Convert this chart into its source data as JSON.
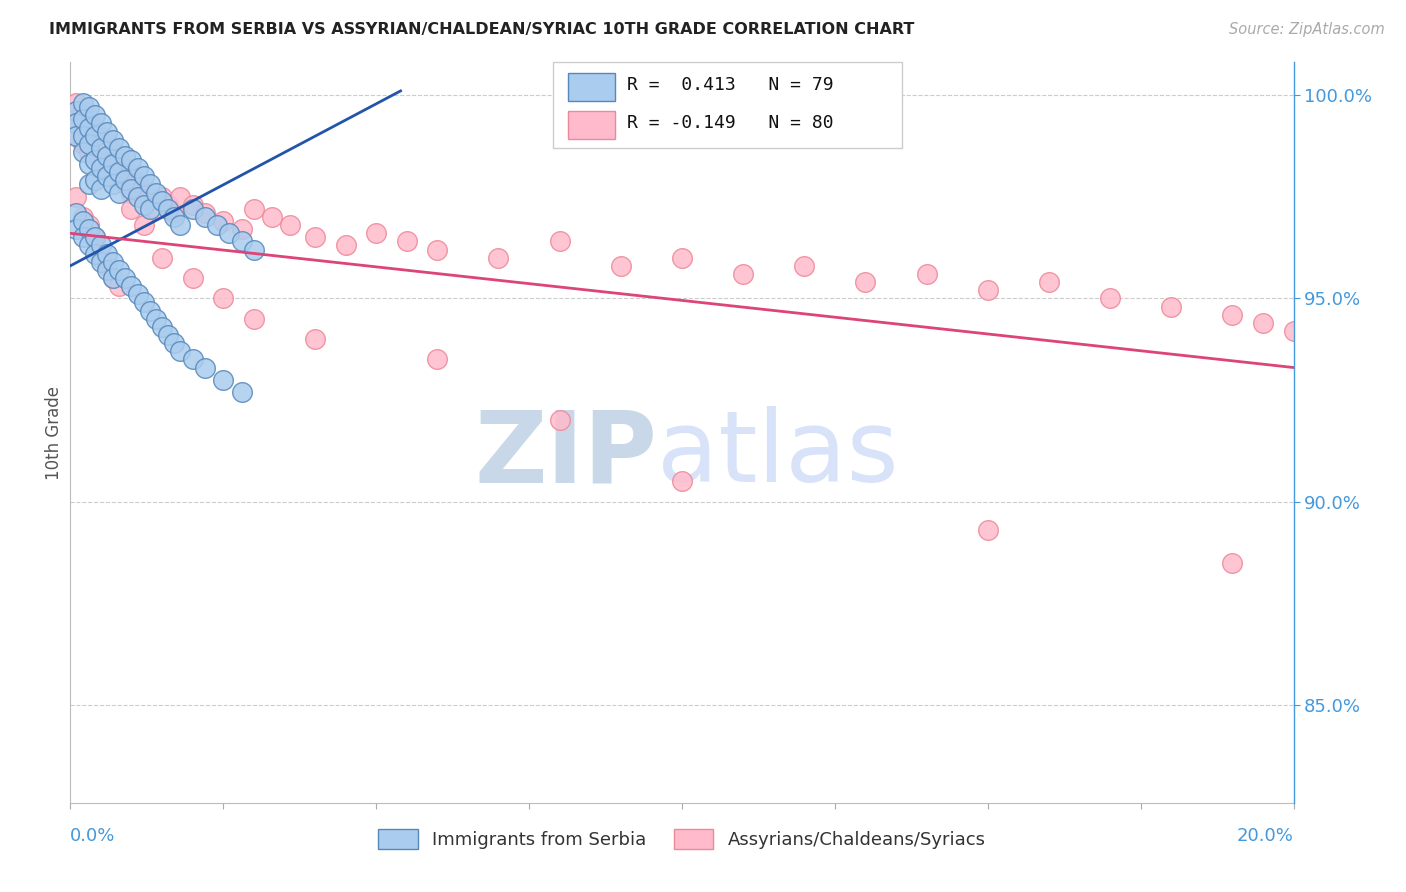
{
  "title": "IMMIGRANTS FROM SERBIA VS ASSYRIAN/CHALDEAN/SYRIAC 10TH GRADE CORRELATION CHART",
  "source": "Source: ZipAtlas.com",
  "ylabel": "10th Grade",
  "y_tick_labels": [
    "85.0%",
    "90.0%",
    "95.0%",
    "100.0%"
  ],
  "y_tick_values": [
    0.85,
    0.9,
    0.95,
    1.0
  ],
  "x_min": 0.0,
  "x_max": 0.2,
  "y_min": 0.826,
  "y_max": 1.008,
  "legend_r1": "R =  0.413",
  "legend_n1": "N = 79",
  "legend_r2": "R = -0.149",
  "legend_n2": "N = 80",
  "blue_color": "#AACCEE",
  "pink_color": "#FFBBCC",
  "blue_edge_color": "#5588BB",
  "pink_edge_color": "#EE8899",
  "blue_line_color": "#2255AA",
  "pink_line_color": "#DD4477",
  "blue_scatter_x": [
    0.001,
    0.001,
    0.001,
    0.002,
    0.002,
    0.002,
    0.002,
    0.003,
    0.003,
    0.003,
    0.003,
    0.003,
    0.004,
    0.004,
    0.004,
    0.004,
    0.005,
    0.005,
    0.005,
    0.005,
    0.006,
    0.006,
    0.006,
    0.007,
    0.007,
    0.007,
    0.008,
    0.008,
    0.008,
    0.009,
    0.009,
    0.01,
    0.01,
    0.011,
    0.011,
    0.012,
    0.012,
    0.013,
    0.013,
    0.014,
    0.015,
    0.016,
    0.017,
    0.018,
    0.02,
    0.022,
    0.024,
    0.026,
    0.028,
    0.03,
    0.001,
    0.001,
    0.002,
    0.002,
    0.003,
    0.003,
    0.004,
    0.004,
    0.005,
    0.005,
    0.006,
    0.006,
    0.007,
    0.007,
    0.008,
    0.009,
    0.01,
    0.011,
    0.012,
    0.013,
    0.014,
    0.015,
    0.016,
    0.017,
    0.018,
    0.02,
    0.022,
    0.025,
    0.028
  ],
  "blue_scatter_y": [
    0.996,
    0.993,
    0.99,
    0.998,
    0.994,
    0.99,
    0.986,
    0.997,
    0.992,
    0.988,
    0.983,
    0.978,
    0.995,
    0.99,
    0.984,
    0.979,
    0.993,
    0.987,
    0.982,
    0.977,
    0.991,
    0.985,
    0.98,
    0.989,
    0.983,
    0.978,
    0.987,
    0.981,
    0.976,
    0.985,
    0.979,
    0.984,
    0.977,
    0.982,
    0.975,
    0.98,
    0.973,
    0.978,
    0.972,
    0.976,
    0.974,
    0.972,
    0.97,
    0.968,
    0.972,
    0.97,
    0.968,
    0.966,
    0.964,
    0.962,
    0.971,
    0.967,
    0.969,
    0.965,
    0.967,
    0.963,
    0.965,
    0.961,
    0.963,
    0.959,
    0.961,
    0.957,
    0.959,
    0.955,
    0.957,
    0.955,
    0.953,
    0.951,
    0.949,
    0.947,
    0.945,
    0.943,
    0.941,
    0.939,
    0.937,
    0.935,
    0.933,
    0.93,
    0.927
  ],
  "pink_scatter_x": [
    0.001,
    0.001,
    0.001,
    0.002,
    0.002,
    0.002,
    0.003,
    0.003,
    0.003,
    0.004,
    0.004,
    0.004,
    0.005,
    0.005,
    0.005,
    0.006,
    0.006,
    0.007,
    0.007,
    0.008,
    0.008,
    0.009,
    0.009,
    0.01,
    0.01,
    0.011,
    0.012,
    0.013,
    0.014,
    0.015,
    0.016,
    0.017,
    0.018,
    0.02,
    0.022,
    0.025,
    0.028,
    0.03,
    0.033,
    0.036,
    0.04,
    0.045,
    0.05,
    0.055,
    0.06,
    0.07,
    0.08,
    0.09,
    0.1,
    0.11,
    0.12,
    0.13,
    0.14,
    0.15,
    0.16,
    0.17,
    0.18,
    0.19,
    0.195,
    0.2,
    0.001,
    0.002,
    0.003,
    0.004,
    0.005,
    0.006,
    0.007,
    0.008,
    0.01,
    0.012,
    0.015,
    0.02,
    0.025,
    0.03,
    0.04,
    0.06,
    0.08,
    0.1,
    0.15,
    0.19
  ],
  "pink_scatter_y": [
    0.998,
    0.994,
    0.99,
    0.996,
    0.992,
    0.988,
    0.994,
    0.99,
    0.986,
    0.992,
    0.988,
    0.984,
    0.99,
    0.986,
    0.982,
    0.988,
    0.984,
    0.986,
    0.982,
    0.984,
    0.98,
    0.982,
    0.978,
    0.98,
    0.976,
    0.978,
    0.976,
    0.974,
    0.972,
    0.975,
    0.973,
    0.971,
    0.975,
    0.973,
    0.971,
    0.969,
    0.967,
    0.972,
    0.97,
    0.968,
    0.965,
    0.963,
    0.966,
    0.964,
    0.962,
    0.96,
    0.964,
    0.958,
    0.96,
    0.956,
    0.958,
    0.954,
    0.956,
    0.952,
    0.954,
    0.95,
    0.948,
    0.946,
    0.944,
    0.942,
    0.975,
    0.97,
    0.968,
    0.965,
    0.96,
    0.958,
    0.955,
    0.953,
    0.972,
    0.968,
    0.96,
    0.955,
    0.95,
    0.945,
    0.94,
    0.935,
    0.92,
    0.905,
    0.893,
    0.885
  ],
  "blue_trend_x": [
    0.0,
    0.054
  ],
  "blue_trend_y": [
    0.958,
    1.001
  ],
  "pink_trend_x": [
    0.0,
    0.2
  ],
  "pink_trend_y": [
    0.966,
    0.933
  ],
  "background_color": "#FFFFFF",
  "grid_color": "#CCCCCC",
  "title_color": "#222222",
  "right_axis_label_color": "#4499DD",
  "watermark_zip_color": "#C8D8E8",
  "watermark_atlas_color": "#C8D8F8"
}
